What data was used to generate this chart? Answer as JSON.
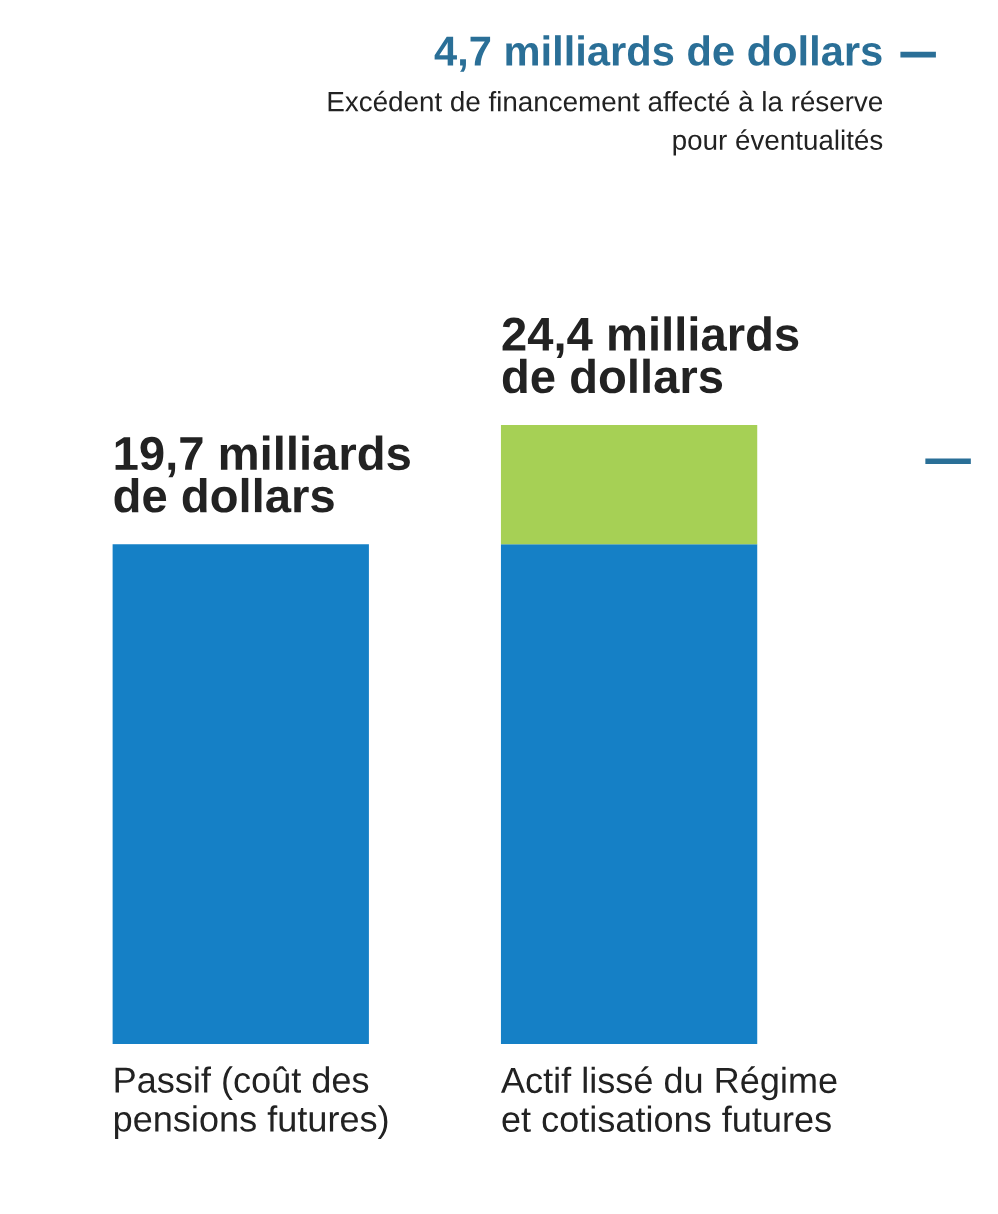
{
  "chart_data": {
    "type": "bar",
    "stacked": true,
    "categories": [
      "Passif (coût des\npensions futures)",
      "Actif lissé du Régime\net cotisations futures"
    ],
    "series": [
      {
        "color": "#1580c6",
        "values": [
          19.7,
          19.7
        ],
        "value_labels": [
          "19,7 milliards\nde dollars",
          null
        ]
      },
      {
        "color": "#a6d055",
        "values": [
          null,
          4.7
        ]
      }
    ],
    "totals": [
      null,
      "24,4 milliards\nde dollars"
    ],
    "annotations": [
      "4,7 milliards de dollars",
      "Excédent de financement affecté à la réserve\npour éventualités"
    ]
  }
}
